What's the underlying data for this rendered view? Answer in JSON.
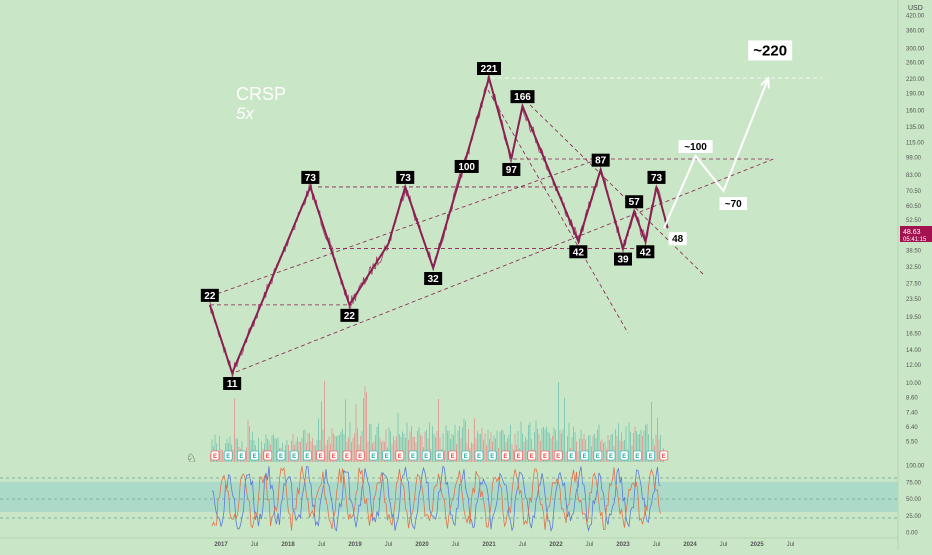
{
  "ticker": "CRSP",
  "leverage_note": "5x",
  "currency": "USD",
  "last_price": "48.63",
  "countdown": "05:41:15",
  "colors": {
    "background": "#c9e6c6",
    "price_line": "#9c2a5e",
    "wave_line": "#8a1f52",
    "label_bg": "#000000",
    "label_fg": "#ffffff",
    "projection": "#ffffff",
    "rsi_band": "#a6d8c8",
    "vol_up": "#6cbfae",
    "vol_down": "#e48a8a",
    "price_tag": "#a3134f",
    "rsi_line1": "#e2724a",
    "rsi_line2": "#5b7bd5",
    "earnings_badge": "#e66"
  },
  "price_axis": {
    "scale": "log",
    "ticks": [
      "420.00",
      "360.00",
      "300.00",
      "260.00",
      "220.00",
      "190.00",
      "160.00",
      "135.00",
      "115.00",
      "99.00",
      "83.00",
      "70.50",
      "60.50",
      "52.50",
      "44.50",
      "38.50",
      "32.50",
      "27.50",
      "23.50",
      "19.50",
      "16.50",
      "14.00",
      "12.00",
      "10.00",
      "8.60",
      "7.40",
      "6.40",
      "5.50"
    ]
  },
  "rsi_axis": {
    "ticks": [
      "100.00",
      "75.00",
      "50.00",
      "25.00",
      "0.00"
    ]
  },
  "time_axis": {
    "ticks": [
      "2017",
      "Jul",
      "2018",
      "Jul",
      "2019",
      "Jul",
      "2020",
      "Jul",
      "2021",
      "Jul",
      "2022",
      "Jul",
      "2023",
      "Jul",
      "2024",
      "Jul",
      "2025",
      "Jul"
    ]
  },
  "chart_data": {
    "type": "line",
    "title": "CRSP",
    "y_scale": "log",
    "ylim": [
      5.5,
      420
    ],
    "wave_points": [
      {
        "date": "2016-11",
        "value": 22,
        "label": "22"
      },
      {
        "date": "2017-03",
        "value": 11,
        "label": "11"
      },
      {
        "date": "2018-05",
        "value": 73,
        "label": "73"
      },
      {
        "date": "2018-12",
        "value": 22,
        "label": "22"
      },
      {
        "date": "2019-07",
        "value": 41,
        "label": ""
      },
      {
        "date": "2019-10",
        "value": 73,
        "label": "73"
      },
      {
        "date": "2020-03",
        "value": 32,
        "label": "32"
      },
      {
        "date": "2020-09",
        "value": 100,
        "label": "100"
      },
      {
        "date": "2021-01",
        "value": 221,
        "label": "221"
      },
      {
        "date": "2021-05",
        "value": 97,
        "label": "97"
      },
      {
        "date": "2021-07",
        "value": 166,
        "label": "166"
      },
      {
        "date": "2022-05",
        "value": 42,
        "label": "42"
      },
      {
        "date": "2022-09",
        "value": 87,
        "label": "87"
      },
      {
        "date": "2023-01",
        "value": 39,
        "label": "39"
      },
      {
        "date": "2023-03",
        "value": 57,
        "label": "57"
      },
      {
        "date": "2023-05",
        "value": 42,
        "label": "42"
      },
      {
        "date": "2023-07",
        "value": 73,
        "label": "73"
      },
      {
        "date": "2023-09",
        "value": 48,
        "label": "48"
      }
    ],
    "projection": [
      {
        "date": "2023-09",
        "value": 48,
        "label": ""
      },
      {
        "date": "2024-02",
        "value": 100,
        "label": "~100"
      },
      {
        "date": "2024-07",
        "value": 70,
        "label": "~70"
      },
      {
        "date": "2025-03",
        "value": 220,
        "label": "~220"
      }
    ],
    "horizontal_levels": [
      221,
      97,
      73,
      39,
      22
    ],
    "rsi_band": [
      30,
      75
    ],
    "rsi_midline": 50
  },
  "earnings_markers": [
    "E",
    "E",
    "E",
    "E",
    "E",
    "E",
    "E",
    "E",
    "E",
    "E",
    "E",
    "E",
    "E",
    "E",
    "E",
    "E",
    "E",
    "E",
    "E",
    "E",
    "E",
    "E",
    "E",
    "E",
    "E",
    "E",
    "E",
    "E",
    "E",
    "E",
    "E",
    "E",
    "E",
    "E",
    "E"
  ]
}
